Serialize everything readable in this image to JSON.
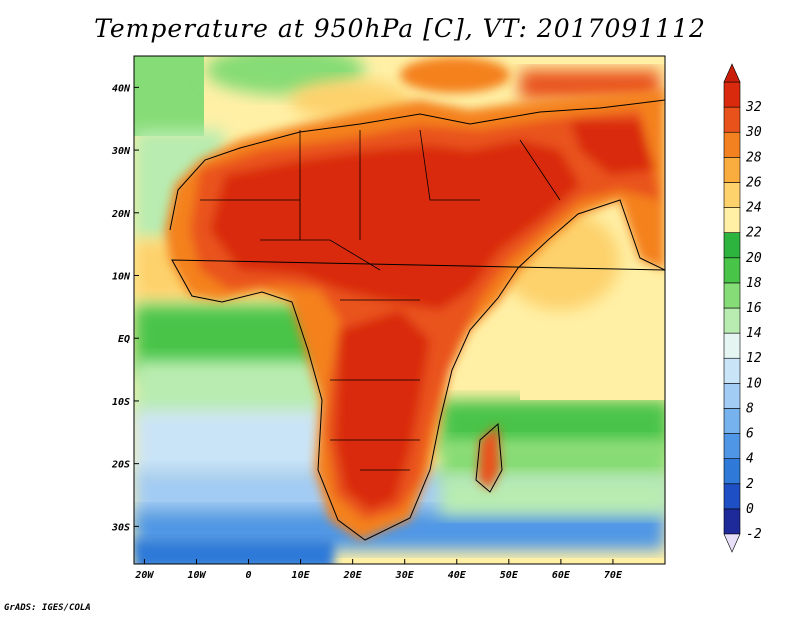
{
  "title": "Temperature at 950hPa [C], VT: 2017091112",
  "credit": "GrADS: IGES/COLA",
  "map": {
    "lon_range": [
      -22,
      80
    ],
    "lat_range": [
      -36,
      45
    ],
    "lon_ticks": [
      {
        "value": -20,
        "label": "20W"
      },
      {
        "value": -10,
        "label": "10W"
      },
      {
        "value": 0,
        "label": "0"
      },
      {
        "value": 10,
        "label": "10E"
      },
      {
        "value": 20,
        "label": "20E"
      },
      {
        "value": 30,
        "label": "30E"
      },
      {
        "value": 40,
        "label": "40E"
      },
      {
        "value": 50,
        "label": "50E"
      },
      {
        "value": 60,
        "label": "60E"
      },
      {
        "value": 70,
        "label": "70E"
      }
    ],
    "lat_ticks": [
      {
        "value": 40,
        "label": "40N"
      },
      {
        "value": 30,
        "label": "30N"
      },
      {
        "value": 20,
        "label": "20N"
      },
      {
        "value": 10,
        "label": "10N"
      },
      {
        "value": 0,
        "label": "EQ"
      },
      {
        "value": -10,
        "label": "10S"
      },
      {
        "value": -20,
        "label": "20S"
      },
      {
        "value": -30,
        "label": "30S"
      }
    ]
  },
  "colorbar": {
    "labels": [
      "-2",
      "0",
      "2",
      "4",
      "6",
      "8",
      "10",
      "12",
      "14",
      "16",
      "18",
      "20",
      "22",
      "24",
      "26",
      "28",
      "30",
      "32"
    ],
    "colors": [
      "#1e2a9a",
      "#1f4fc4",
      "#2f7ad9",
      "#4f97e6",
      "#76b2ee",
      "#a3ccf4",
      "#c9e4f7",
      "#e4f5f2",
      "#b8ecb0",
      "#86dc76",
      "#48c448",
      "#2db43e",
      "#fff0a6",
      "#fdd16c",
      "#f9ad3e",
      "#f4811f",
      "#e9521a",
      "#d92a0e"
    ],
    "under_color": "#e8e0f8",
    "over_color": "#c81e0a"
  }
}
